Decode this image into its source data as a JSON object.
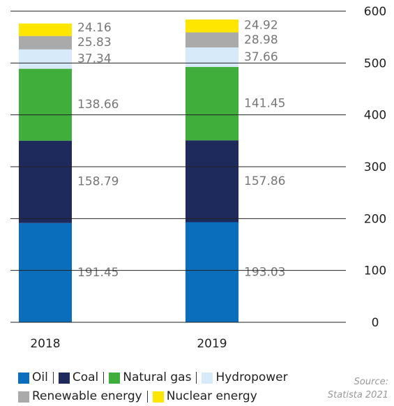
{
  "chart_data": {
    "type": "stacked_bar",
    "categories": [
      "2018",
      "2019"
    ],
    "series": [
      {
        "name": "Oil",
        "color": "#0a6ebd",
        "values": [
          191.45,
          193.03
        ]
      },
      {
        "name": "Coal",
        "color": "#1f2a5c",
        "values": [
          158.79,
          157.86
        ]
      },
      {
        "name": "Natural gas",
        "color": "#3fae3a",
        "values": [
          138.66,
          141.45
        ]
      },
      {
        "name": "Hydropower",
        "color": "#d6eafa",
        "values": [
          37.34,
          37.66
        ]
      },
      {
        "name": "Renewable energy",
        "color": "#aaaaaa",
        "values": [
          25.83,
          28.98
        ]
      },
      {
        "name": "Nuclear energy",
        "color": "#ffe600",
        "values": [
          24.16,
          24.92
        ]
      }
    ],
    "ylim": [
      0,
      600
    ],
    "yticks": [
      0,
      100,
      200,
      300,
      400,
      500,
      600
    ],
    "grid": true,
    "legend": "bottom",
    "source_label": "Source:",
    "source": "Statista 2021"
  }
}
